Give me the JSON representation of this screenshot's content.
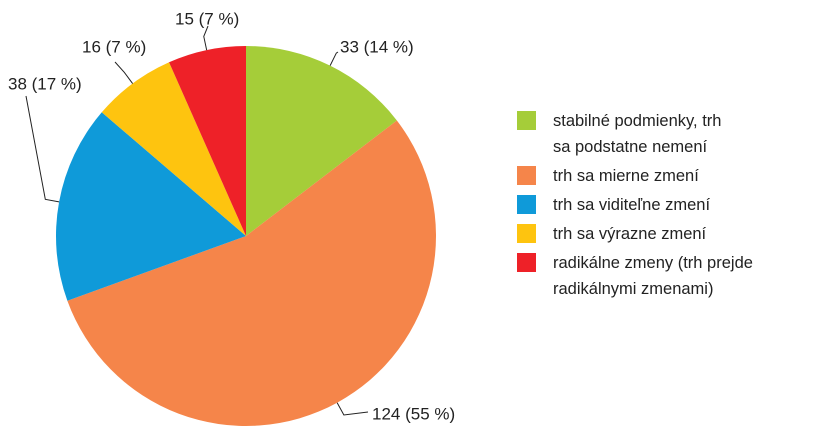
{
  "chart_data": {
    "type": "pie",
    "categories": [
      "stabilné podmienky, trh\nsa podstatne nemení",
      "trh sa mierne zmení",
      "trh sa viditeľne zmení",
      "trh sa výrazne zmení",
      "radikálne zmeny (trh prejde\nradikálnymi zmenami)"
    ],
    "values": [
      33,
      124,
      38,
      16,
      15
    ],
    "value_labels": [
      "33 (14 %)",
      "124 (55 %)",
      "38 (17 %)",
      "16 (7 %)",
      "15 (7 %)"
    ],
    "colors": [
      "#a5cd39",
      "#f5854a",
      "#0f9ad9",
      "#fec40f",
      "#ee2128"
    ],
    "legend": "right"
  }
}
